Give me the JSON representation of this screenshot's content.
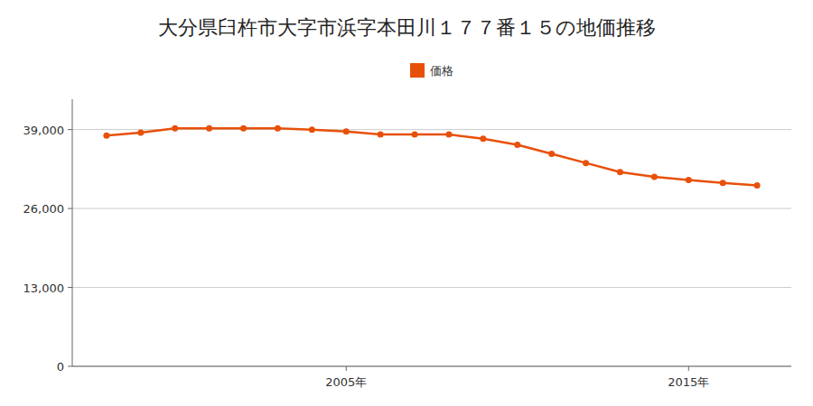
{
  "chart_data": {
    "type": "line",
    "title": "大分県臼杵市大字市浜字本田川１７７番１５の地価推移",
    "x": [
      1998,
      1999,
      2000,
      2001,
      2002,
      2003,
      2004,
      2005,
      2006,
      2007,
      2008,
      2009,
      2010,
      2011,
      2012,
      2013,
      2014,
      2015,
      2016,
      2017
    ],
    "series": [
      {
        "name": "価格",
        "color": "#e8500a",
        "marker": "circle",
        "values": [
          38000,
          38500,
          39200,
          39200,
          39200,
          39200,
          39000,
          38700,
          38200,
          38200,
          38200,
          37500,
          36500,
          35000,
          33500,
          32000,
          31200,
          30700,
          30200,
          29800
        ]
      }
    ],
    "xlim": [
      1997,
      2018
    ],
    "xticks": [
      {
        "value": 2005,
        "label": "2005年"
      },
      {
        "value": 2015,
        "label": "2015年"
      }
    ],
    "ylim": [
      0,
      44000
    ],
    "yticks": [
      0,
      {
        "value": 13000,
        "label": "13,000"
      },
      {
        "value": 26000,
        "label": "26,000"
      },
      {
        "value": 39000,
        "label": "39,000"
      }
    ],
    "grid": true,
    "legend": "top"
  }
}
